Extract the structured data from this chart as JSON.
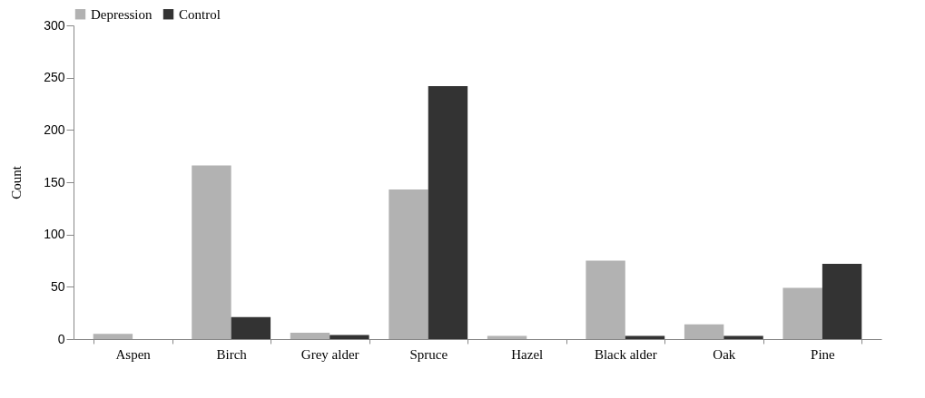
{
  "chart_data": {
    "type": "bar",
    "ylabel": "Count",
    "categories": [
      "Aspen",
      "Birch",
      "Grey alder",
      "Spruce",
      "Hazel",
      "Black alder",
      "Oak",
      "Pine"
    ],
    "series": [
      {
        "name": "Depression",
        "color": "#b2b2b2",
        "values": [
          5,
          166,
          6,
          143,
          3,
          75,
          14,
          49
        ]
      },
      {
        "name": "Control",
        "color": "#333333",
        "values": [
          0,
          21,
          4,
          242,
          0,
          3,
          3,
          72
        ]
      }
    ],
    "ylim": [
      0,
      300
    ],
    "yticks": [
      0,
      50,
      100,
      150,
      200,
      250,
      300
    ],
    "grid": false,
    "legend": "top"
  }
}
